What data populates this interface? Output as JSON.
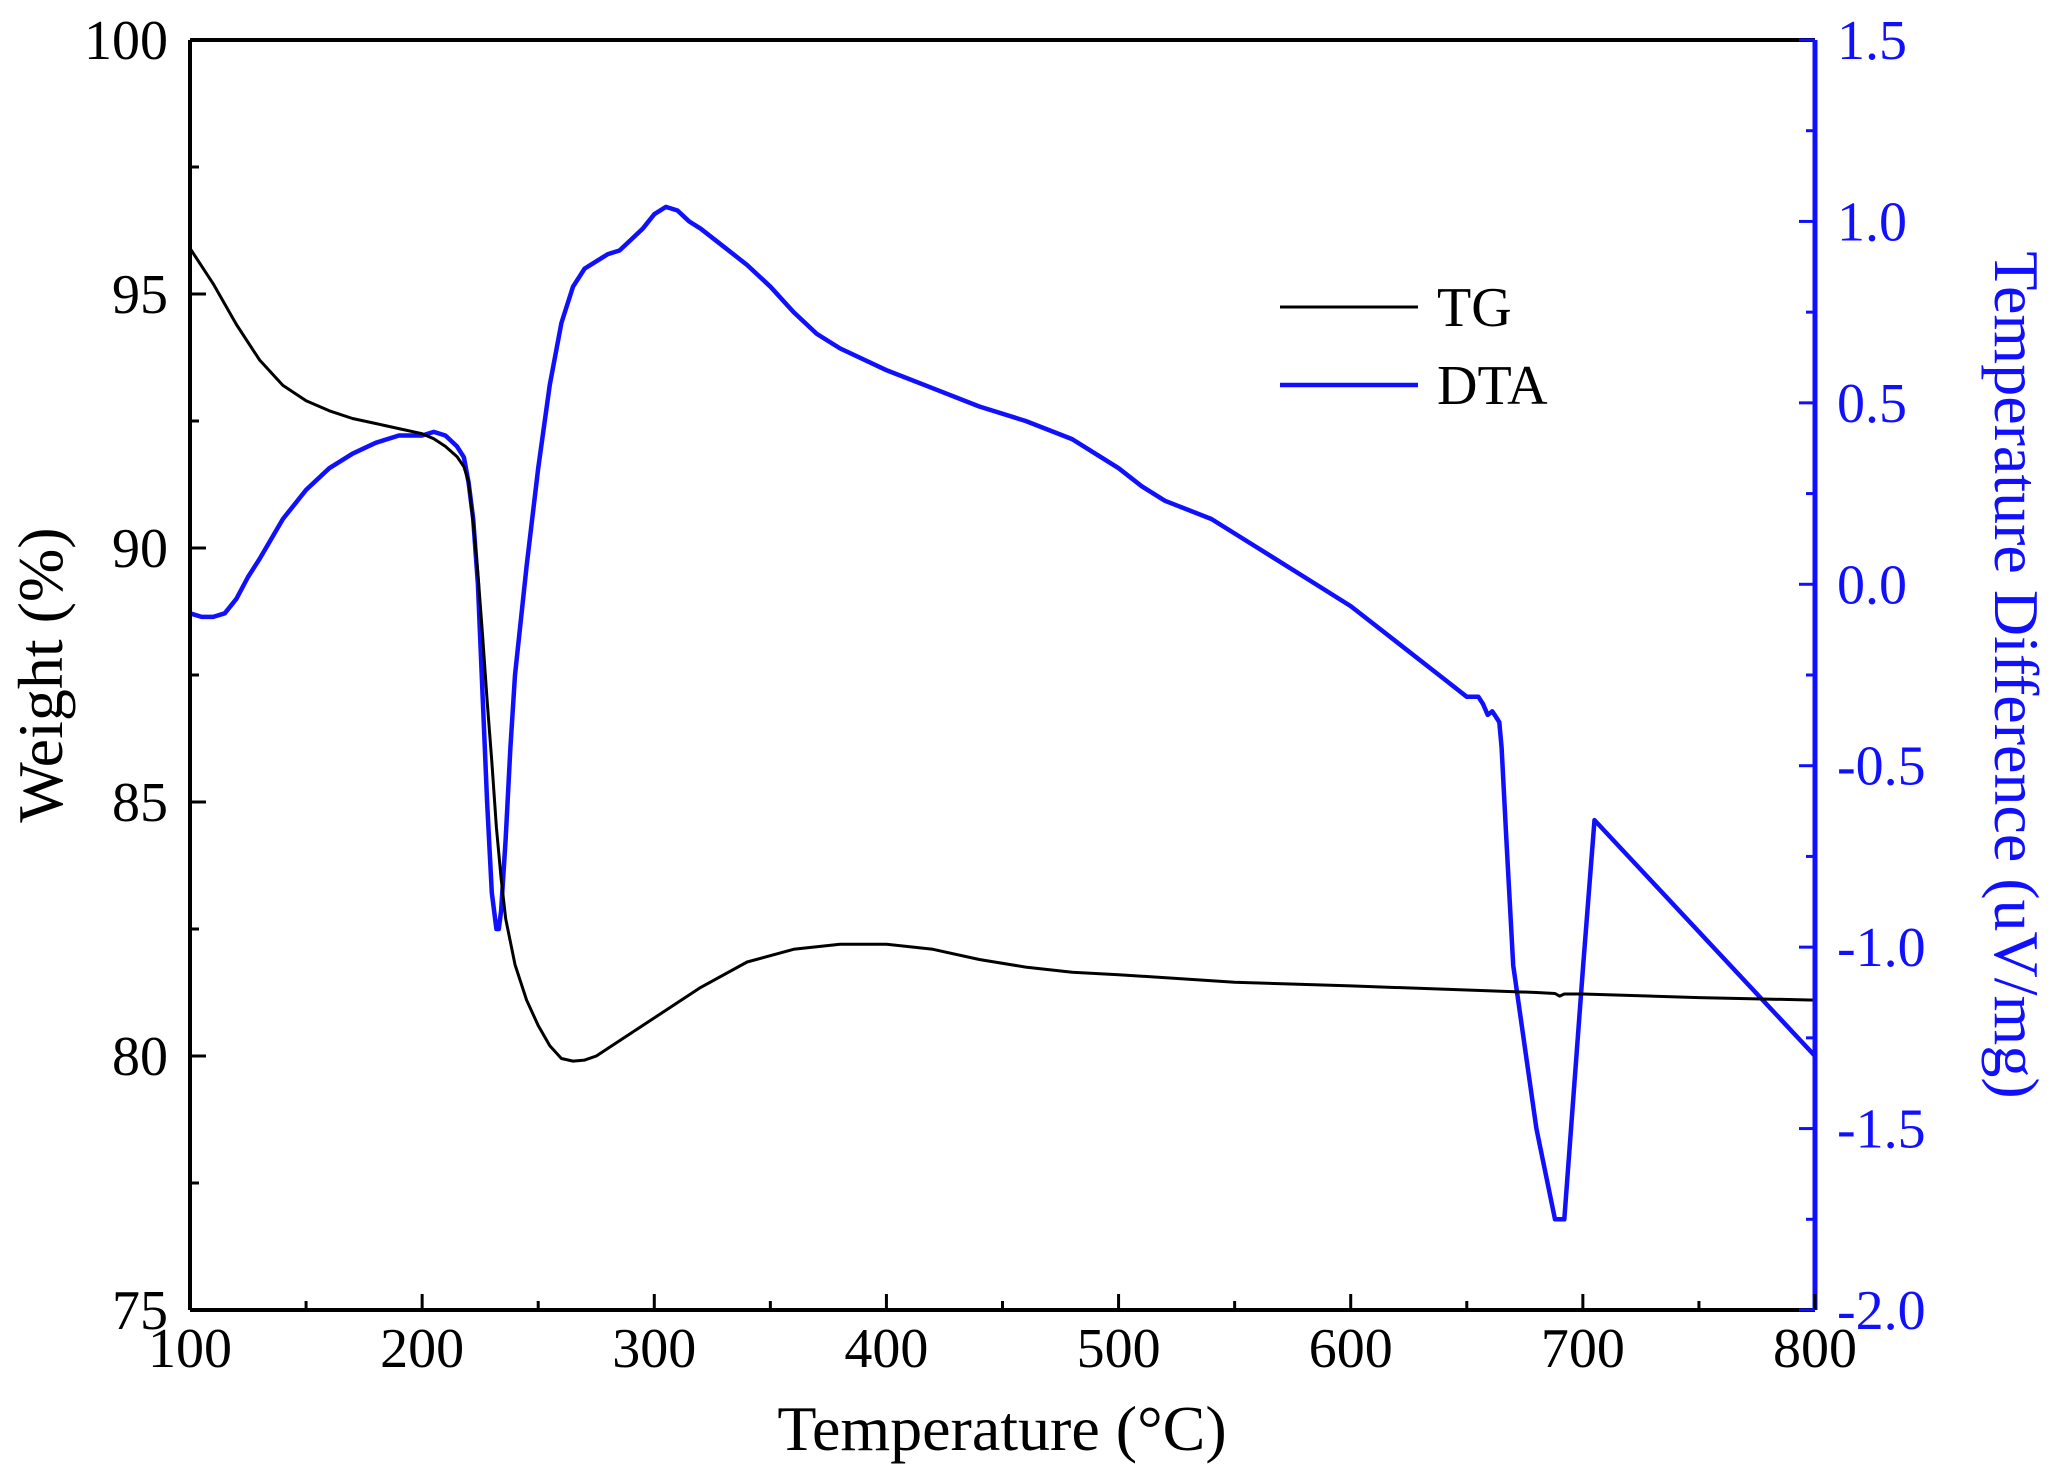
{
  "chart_data": {
    "type": "line",
    "title": "",
    "xlabel": "Temperature (°C)",
    "ylabel_left": "Weight (%)",
    "ylabel_right": "Temperature Difference (uV/mg)",
    "xlim": [
      100,
      800
    ],
    "ylim_left": [
      75,
      100
    ],
    "ylim_right": [
      -2.0,
      1.5
    ],
    "x_ticks": [
      100,
      200,
      300,
      400,
      500,
      600,
      700,
      800
    ],
    "x_tick_labels": [
      "100",
      "200",
      "300",
      "400",
      "500",
      "600",
      "700",
      "800"
    ],
    "y_left_ticks": [
      75,
      80,
      85,
      90,
      95,
      100
    ],
    "y_left_tick_labels": [
      "75",
      "80",
      "85",
      "90",
      "95",
      "100"
    ],
    "y_right_ticks": [
      -2.0,
      -1.5,
      -1.0,
      -0.5,
      0.0,
      0.5,
      1.0,
      1.5
    ],
    "y_right_tick_labels": [
      "-2.0",
      "-1.5",
      "-1.0",
      "-0.5",
      "0.0",
      "0.5",
      "1.0",
      "1.5"
    ],
    "legend": {
      "position": "top-right",
      "entries": [
        "TG",
        "DTA"
      ]
    },
    "grid": false,
    "colors": {
      "tg": "#000000",
      "dta": "#1010ff",
      "axis_left": "#000000",
      "axis_right": "#1010ff"
    },
    "series": [
      {
        "name": "TG",
        "axis": "left",
        "x": [
          100,
          110,
          120,
          130,
          140,
          150,
          160,
          170,
          180,
          190,
          200,
          205,
          210,
          215,
          218,
          220,
          222,
          224,
          226,
          228,
          230,
          232,
          234,
          236,
          240,
          245,
          250,
          255,
          260,
          265,
          270,
          275,
          280,
          290,
          300,
          320,
          340,
          360,
          380,
          400,
          420,
          440,
          460,
          480,
          500,
          550,
          600,
          650,
          680,
          688,
          690,
          692,
          700,
          750,
          800
        ],
        "values": [
          95.9,
          95.2,
          94.4,
          93.7,
          93.2,
          92.9,
          92.7,
          92.55,
          92.45,
          92.35,
          92.25,
          92.15,
          92.0,
          91.8,
          91.6,
          91.3,
          90.5,
          89.5,
          88.3,
          87.0,
          85.8,
          84.5,
          83.5,
          82.7,
          81.8,
          81.1,
          80.6,
          80.2,
          79.95,
          79.9,
          79.92,
          80.0,
          80.15,
          80.45,
          80.75,
          81.35,
          81.85,
          82.1,
          82.2,
          82.2,
          82.1,
          81.9,
          81.75,
          81.65,
          81.6,
          81.45,
          81.38,
          81.3,
          81.25,
          81.23,
          81.18,
          81.22,
          81.22,
          81.15,
          81.1
        ]
      },
      {
        "name": "DTA",
        "axis": "right",
        "x": [
          100,
          105,
          110,
          115,
          120,
          125,
          130,
          140,
          150,
          160,
          170,
          180,
          190,
          200,
          205,
          210,
          215,
          218,
          220,
          222,
          224,
          226,
          228,
          230,
          232,
          233,
          234,
          235,
          236,
          238,
          240,
          245,
          250,
          255,
          260,
          265,
          270,
          275,
          280,
          285,
          290,
          295,
          300,
          305,
          310,
          315,
          320,
          330,
          340,
          350,
          360,
          370,
          380,
          400,
          420,
          440,
          460,
          480,
          490,
          500,
          510,
          520,
          540,
          560,
          580,
          600,
          620,
          640,
          650,
          655,
          657,
          659,
          661,
          663,
          664,
          665,
          667,
          670,
          680,
          688,
          692,
          700,
          705,
          800
        ],
        "values": [
          -0.08,
          -0.09,
          -0.09,
          -0.08,
          -0.04,
          0.02,
          0.07,
          0.18,
          0.26,
          0.32,
          0.36,
          0.39,
          0.41,
          0.41,
          0.42,
          0.41,
          0.38,
          0.35,
          0.28,
          0.18,
          0.0,
          -0.3,
          -0.6,
          -0.85,
          -0.95,
          -0.95,
          -0.9,
          -0.8,
          -0.7,
          -0.45,
          -0.25,
          0.05,
          0.32,
          0.55,
          0.72,
          0.82,
          0.87,
          0.89,
          0.91,
          0.92,
          0.95,
          0.98,
          1.02,
          1.04,
          1.03,
          1.0,
          0.98,
          0.93,
          0.88,
          0.82,
          0.75,
          0.69,
          0.65,
          0.59,
          0.54,
          0.49,
          0.45,
          0.4,
          0.36,
          0.32,
          0.27,
          0.23,
          0.18,
          0.1,
          0.02,
          -0.06,
          -0.16,
          -0.26,
          -0.31,
          -0.31,
          -0.33,
          -0.36,
          -0.35,
          -0.37,
          -0.38,
          -0.45,
          -0.7,
          -1.05,
          -1.5,
          -1.75,
          -1.75,
          -1.06,
          -0.65,
          -1.3
        ]
      }
    ]
  }
}
